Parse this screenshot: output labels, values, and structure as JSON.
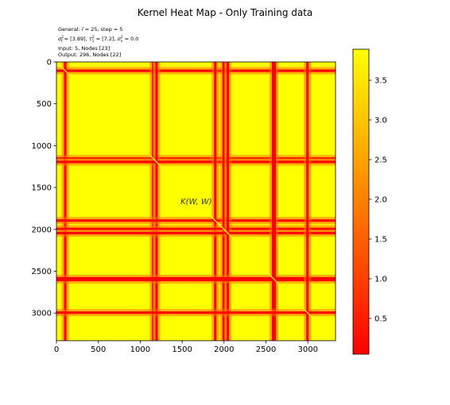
{
  "chart_data": {
    "type": "heatmap",
    "title": "Kernel Heat Map - Only Training data",
    "info_lines": [
      "General: l = 25, step = 5",
      "σ²f = [3.89], τ²1 = [7.2], σ²n = 0.0",
      "Input: 5, Nodes [23]",
      "Output: 296, Nodes [22]"
    ],
    "info_math": {
      "line1": {
        "prefix": "General: ",
        "l_symbol": "l",
        "rest": " = 25, step = 5"
      },
      "line2": {
        "sf": "σ",
        "sf_sup": "2",
        "sf_sub": "f",
        "sf_val": " = [3.89], ",
        "tau": "τ",
        "tau_sup": "2",
        "tau_sub": "1",
        "tau_val": " = [7.2], ",
        "sn": "σ",
        "sn_sup": "2",
        "sn_sub": "n",
        "sn_val": " = 0.0"
      }
    },
    "annotation": "K(W, W)",
    "xlim": [
      0,
      3330
    ],
    "ylim": [
      0,
      3330
    ],
    "y_inverted": true,
    "x_ticks": [
      0,
      500,
      1000,
      1500,
      2000,
      2500,
      3000
    ],
    "y_ticks": [
      0,
      500,
      1000,
      1500,
      2000,
      2500,
      3000
    ],
    "colorbar": {
      "range": [
        0.05,
        3.89
      ],
      "ticks": [
        0.5,
        1.0,
        1.5,
        2.0,
        2.5,
        3.0,
        3.5
      ],
      "tick_labels": [
        "0.5",
        "1.0",
        "1.5",
        "2.0",
        "2.5",
        "3.0",
        "3.5"
      ],
      "colormap": "autumn",
      "colors": [
        "#ff0000",
        "#ffff00"
      ]
    },
    "low_bands": [
      {
        "start": 90,
        "end": 120,
        "value": 0.1
      },
      {
        "start": 1140,
        "end": 1160,
        "value": 0.1
      },
      {
        "start": 1180,
        "end": 1210,
        "value": 0.1
      },
      {
        "start": 1880,
        "end": 1910,
        "value": 0.1
      },
      {
        "start": 1980,
        "end": 2010,
        "value": 0.1
      },
      {
        "start": 2030,
        "end": 2060,
        "value": 0.1
      },
      {
        "start": 2570,
        "end": 2620,
        "value": 0.05
      },
      {
        "start": 2980,
        "end": 3010,
        "value": 0.1
      }
    ],
    "diagonal_value": 3.89
  }
}
